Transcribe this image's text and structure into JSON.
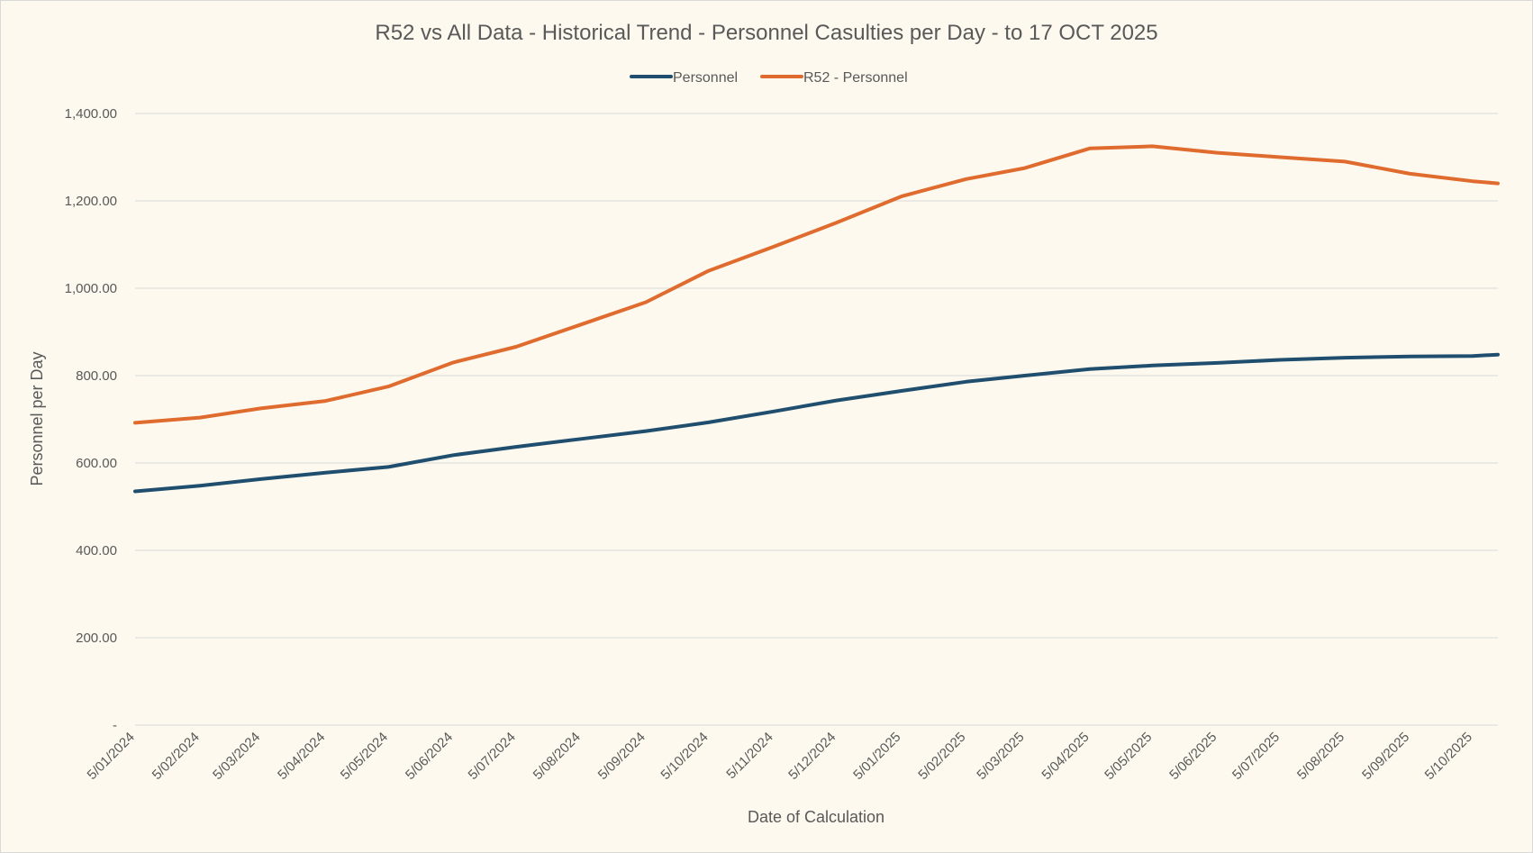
{
  "chart_data": {
    "type": "line",
    "title": "R52 vs All Data - Historical Trend - Personnel Casulties per Day - to 17 OCT 2025",
    "xlabel": "Date of Calculation",
    "ylabel": "Personnel per Day",
    "ylim": [
      0,
      1400
    ],
    "y_ticks": [
      0,
      200,
      400,
      600,
      800,
      1000,
      1200,
      1400
    ],
    "y_tick_labels": [
      "-",
      "200.00",
      "400.00",
      "600.00",
      "800.00",
      "1,000.00",
      "1,200.00",
      "1,400.00"
    ],
    "x_tick_labels": [
      "5/01/2024",
      "5/02/2024",
      "5/03/2024",
      "5/04/2024",
      "5/05/2024",
      "5/06/2024",
      "5/07/2024",
      "5/08/2024",
      "5/09/2024",
      "5/10/2024",
      "5/11/2024",
      "5/12/2024",
      "5/01/2025",
      "5/02/2025",
      "5/03/2025",
      "5/04/2025",
      "5/05/2025",
      "5/06/2025",
      "5/07/2025",
      "5/08/2025",
      "5/09/2025",
      "5/10/2025"
    ],
    "x_range": [
      "5/01/2024",
      "17/10/2025"
    ],
    "legend_position": "top-center",
    "grid": true,
    "series": [
      {
        "name": "Personnel",
        "color": "#1f4e6e",
        "points": [
          [
            "5/01/2024",
            535
          ],
          [
            "5/02/2024",
            548
          ],
          [
            "5/03/2024",
            563
          ],
          [
            "5/04/2024",
            578
          ],
          [
            "5/05/2024",
            591
          ],
          [
            "5/06/2024",
            618
          ],
          [
            "5/07/2024",
            637
          ],
          [
            "5/08/2024",
            655
          ],
          [
            "5/09/2024",
            673
          ],
          [
            "5/10/2024",
            693
          ],
          [
            "5/11/2024",
            718
          ],
          [
            "5/12/2024",
            743
          ],
          [
            "5/01/2025",
            765
          ],
          [
            "5/02/2025",
            786
          ],
          [
            "5/03/2025",
            800
          ],
          [
            "5/04/2025",
            815
          ],
          [
            "5/05/2025",
            823
          ],
          [
            "5/06/2025",
            829
          ],
          [
            "5/07/2025",
            836
          ],
          [
            "5/08/2025",
            841
          ],
          [
            "5/09/2025",
            844
          ],
          [
            "5/10/2025",
            845
          ],
          [
            "17/10/2025",
            848
          ]
        ]
      },
      {
        "name": "R52 - Personnel",
        "color": "#e06b2e",
        "points": [
          [
            "5/01/2024",
            692
          ],
          [
            "5/02/2024",
            704
          ],
          [
            "5/03/2024",
            725
          ],
          [
            "5/04/2024",
            742
          ],
          [
            "5/05/2024",
            775
          ],
          [
            "5/06/2024",
            830
          ],
          [
            "5/07/2024",
            866
          ],
          [
            "5/08/2024",
            917
          ],
          [
            "5/09/2024",
            968
          ],
          [
            "5/10/2024",
            1040
          ],
          [
            "5/11/2024",
            1095
          ],
          [
            "5/12/2024",
            1150
          ],
          [
            "5/01/2025",
            1210
          ],
          [
            "5/02/2025",
            1250
          ],
          [
            "5/03/2025",
            1275
          ],
          [
            "5/04/2025",
            1320
          ],
          [
            "5/05/2025",
            1325
          ],
          [
            "5/06/2025",
            1310
          ],
          [
            "5/07/2025",
            1300
          ],
          [
            "5/08/2025",
            1290
          ],
          [
            "5/09/2025",
            1262
          ],
          [
            "5/10/2025",
            1245
          ],
          [
            "17/10/2025",
            1240
          ]
        ]
      }
    ]
  }
}
